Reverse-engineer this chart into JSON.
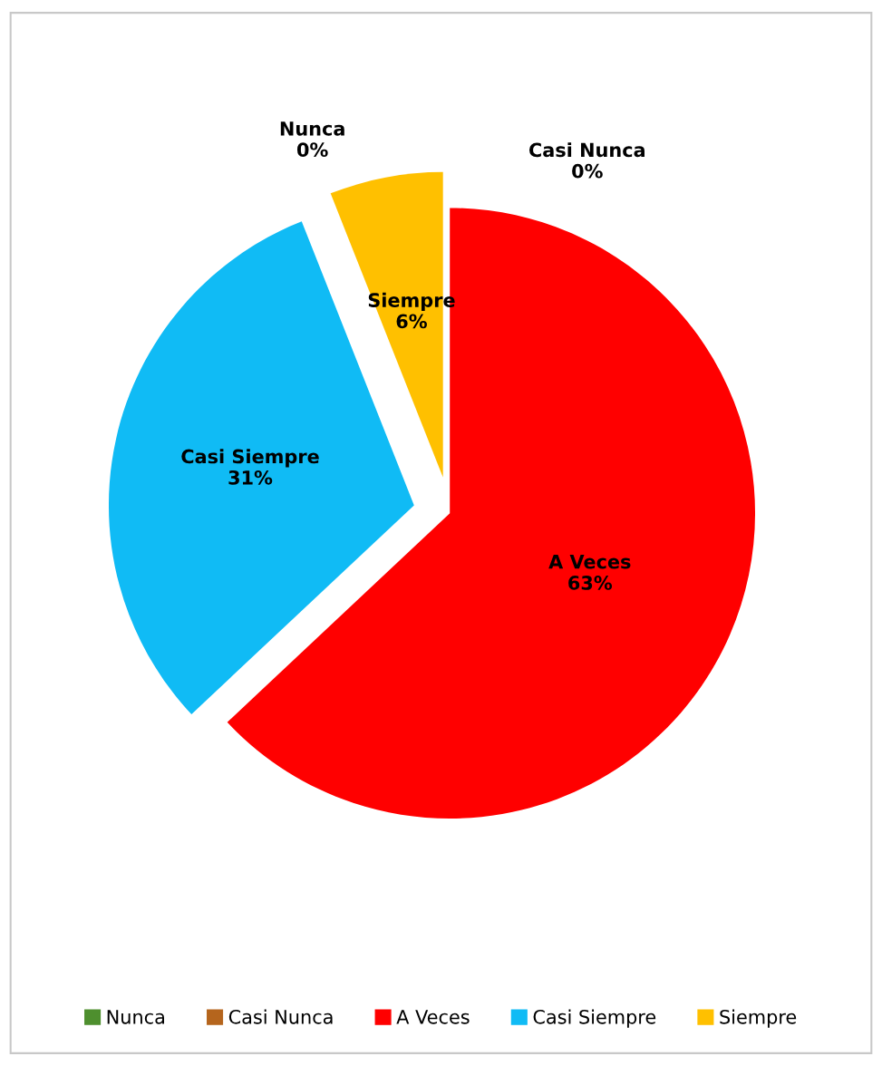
{
  "chart_data": {
    "type": "pie",
    "categories": [
      "Nunca",
      "Casi Nunca",
      "A Veces",
      "Casi Siempre",
      "Siempre"
    ],
    "values": [
      0,
      0,
      63,
      31,
      6
    ],
    "value_labels": [
      "0%",
      "0%",
      "63%",
      "31%",
      "6%"
    ],
    "colors": [
      "#4e8f2e",
      "#b5651d",
      "#ff0000",
      "#10bbf5",
      "#ffc000"
    ],
    "legend": "bottom"
  }
}
